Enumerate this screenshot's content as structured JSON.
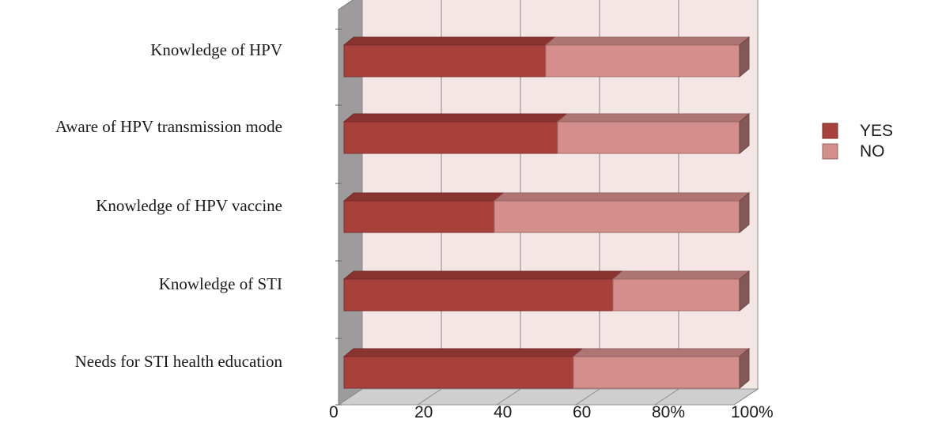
{
  "chart_data": {
    "type": "bar",
    "orientation": "horizontal",
    "stacked": true,
    "percent_stacked": true,
    "three_d": true,
    "categories": [
      "Knowledge of HPV",
      "Aware of HPV transmission mode",
      "Knowledge of HPV vaccine",
      "Knowledge of STI",
      "Needs for STI health education"
    ],
    "series": [
      {
        "name": "YES",
        "color": "#a8403c",
        "values": [
          51,
          54,
          38,
          68,
          58
        ]
      },
      {
        "name": "NO",
        "color": "#d48f8c",
        "values": [
          49,
          46,
          62,
          32,
          42
        ]
      }
    ],
    "x_ticks": [
      "0",
      "20",
      "40",
      "60",
      "80%",
      "100%"
    ],
    "xlim": [
      0,
      100
    ],
    "grid": true,
    "legend_position": "right",
    "colors": {
      "plot_background": "#f5e6e6",
      "floor": "#d0cfcf",
      "side_wall": "#9d9b9b",
      "grid": "#8a8a8a"
    }
  }
}
